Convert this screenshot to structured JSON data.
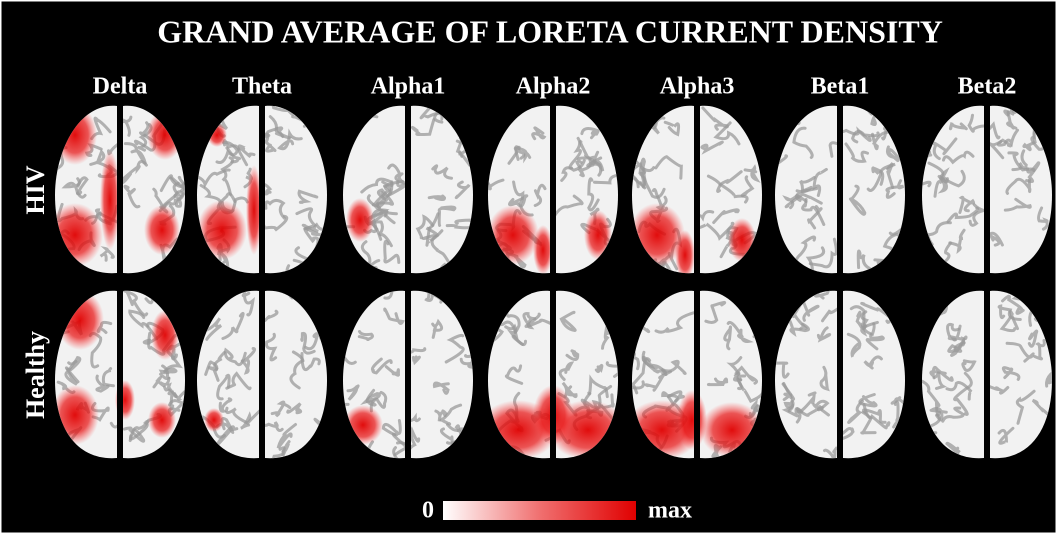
{
  "title": "GRAND AVERAGE OF LORETA CURRENT DENSITY",
  "bands": [
    "Delta",
    "Theta",
    "Alpha1",
    "Alpha2",
    "Alpha3",
    "Beta1",
    "Beta2"
  ],
  "groups": [
    "HIV",
    "Healthy"
  ],
  "colorbar": {
    "min_label": "0",
    "max_label": "max"
  }
}
